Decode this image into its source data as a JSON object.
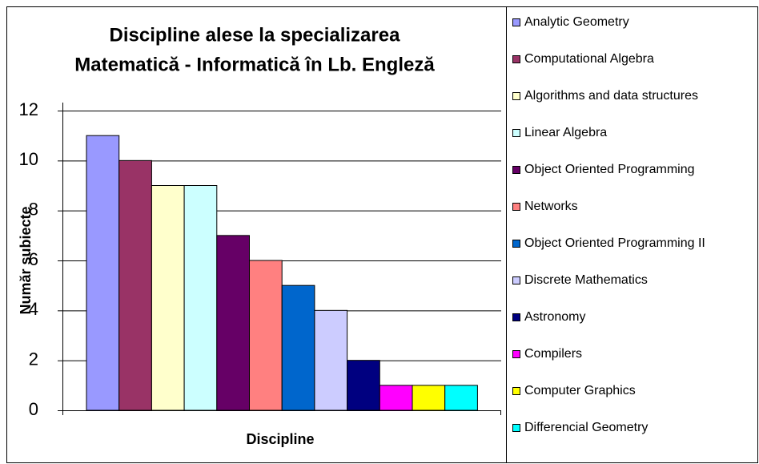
{
  "chart_data": {
    "type": "bar",
    "title": [
      "Discipline alese la specializarea",
      "Matematică - Informatică în Lb. Engleză"
    ],
    "x_label": "Discipline",
    "y_label": "Număr subiecte",
    "categories": [
      null
    ],
    "series": [
      {
        "name": "Analytic Geometry",
        "color": "#9999ff",
        "values": [
          11
        ]
      },
      {
        "name": "Computational Algebra",
        "color": "#993366",
        "values": [
          10
        ]
      },
      {
        "name": "Algorithms and data structures",
        "color": "#ffffcc",
        "values": [
          9
        ]
      },
      {
        "name": "Linear Algebra",
        "color": "#ccffff",
        "values": [
          9
        ]
      },
      {
        "name": "Object Oriented Programming",
        "color": "#660066",
        "values": [
          7
        ]
      },
      {
        "name": "Networks",
        "color": "#ff8080",
        "values": [
          6
        ]
      },
      {
        "name": "Object Oriented Programming II",
        "color": "#0066cc",
        "values": [
          5
        ]
      },
      {
        "name": "Discrete Mathematics",
        "color": "#ccccff",
        "values": [
          4
        ]
      },
      {
        "name": "Astronomy",
        "color": "#000080",
        "values": [
          2
        ]
      },
      {
        "name": "Compilers",
        "color": "#ff00ff",
        "values": [
          1
        ]
      },
      {
        "name": "Computer Graphics",
        "color": "#ffff00",
        "values": [
          1
        ]
      },
      {
        "name": "Differencial Geometry",
        "color": "#00ffff",
        "values": [
          1
        ]
      }
    ],
    "ylim": [
      0,
      12
    ],
    "yticks": [
      0,
      2,
      4,
      6,
      8,
      10,
      12
    ],
    "grid": true,
    "legend": "right"
  }
}
